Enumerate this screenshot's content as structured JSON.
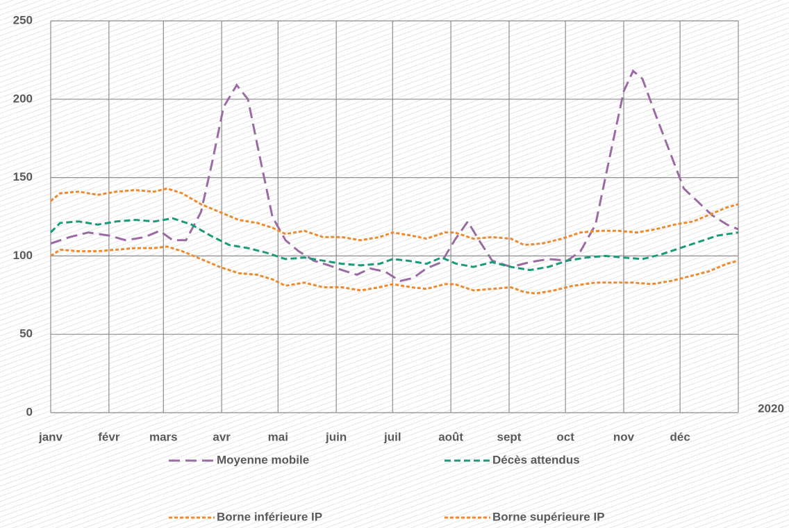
{
  "chart_data": {
    "type": "line",
    "x_label": "2020",
    "xlim": [
      0,
      366
    ],
    "xticks": [
      {
        "value": 0,
        "label": "janv"
      },
      {
        "value": 31,
        "label": "févr"
      },
      {
        "value": 60,
        "label": "mars"
      },
      {
        "value": 91,
        "label": "avr"
      },
      {
        "value": 121,
        "label": "mai"
      },
      {
        "value": 152,
        "label": "juin"
      },
      {
        "value": 182,
        "label": "juil"
      },
      {
        "value": 213,
        "label": "août"
      },
      {
        "value": 244,
        "label": "sept"
      },
      {
        "value": 274,
        "label": "oct"
      },
      {
        "value": 305,
        "label": "nov"
      },
      {
        "value": 335,
        "label": "déc"
      }
    ],
    "ylim": [
      0,
      250
    ],
    "yticks": [
      0,
      50,
      100,
      150,
      200,
      250
    ],
    "grid": true,
    "legend": "bottom",
    "series": [
      {
        "name": "Moyenne mobile",
        "color": "#9a6ba3",
        "dash": "long",
        "x": [
          0,
          10,
          20,
          31,
          40,
          50,
          58,
          65,
          72,
          80,
          86,
          92,
          99,
          105,
          111,
          118,
          125,
          132,
          140,
          148,
          155,
          163,
          170,
          178,
          186,
          193,
          200,
          208,
          215,
          222,
          228,
          235,
          245,
          255,
          265,
          275,
          282,
          290,
          297,
          305,
          310,
          315,
          322,
          330,
          337,
          345,
          352,
          360,
          366
        ],
        "values": [
          108,
          112,
          115,
          113,
          110,
          112,
          116,
          110,
          110,
          128,
          160,
          195,
          209,
          200,
          165,
          125,
          110,
          103,
          97,
          94,
          91,
          88,
          92,
          90,
          84,
          86,
          92,
          96,
          110,
          122,
          110,
          97,
          93,
          96,
          98,
          97,
          103,
          120,
          160,
          205,
          218,
          213,
          190,
          165,
          143,
          134,
          126,
          120,
          117
        ]
      },
      {
        "name": "Décès attendus",
        "color": "#1a9a78",
        "dash": "medium",
        "x": [
          0,
          5,
          15,
          25,
          35,
          45,
          55,
          65,
          75,
          85,
          95,
          105,
          115,
          125,
          135,
          145,
          155,
          165,
          175,
          182,
          190,
          200,
          208,
          216,
          225,
          235,
          245,
          255,
          265,
          275,
          285,
          295,
          305,
          315,
          325,
          335,
          345,
          355,
          366
        ],
        "values": [
          115,
          121,
          122,
          120,
          122,
          123,
          122,
          124,
          120,
          113,
          107,
          105,
          102,
          98,
          99,
          97,
          95,
          94,
          95,
          98,
          97,
          95,
          99,
          95,
          93,
          96,
          93,
          91,
          93,
          97,
          99,
          100,
          99,
          98,
          101,
          105,
          109,
          113,
          115
        ]
      },
      {
        "name": "Borne inférieure IP",
        "color": "#ee8a2c",
        "dash": "short",
        "x": [
          0,
          5,
          15,
          25,
          35,
          45,
          55,
          62,
          70,
          80,
          90,
          100,
          110,
          118,
          125,
          135,
          145,
          155,
          165,
          175,
          182,
          192,
          200,
          210,
          215,
          225,
          235,
          245,
          252,
          258,
          268,
          278,
          290,
          300,
          310,
          320,
          330,
          340,
          350,
          360,
          366
        ],
        "values": [
          100,
          104,
          103,
          103,
          104,
          105,
          105,
          106,
          103,
          98,
          93,
          89,
          88,
          85,
          81,
          83,
          80,
          80,
          78,
          80,
          82,
          80,
          79,
          82,
          82,
          78,
          79,
          80,
          77,
          76,
          78,
          81,
          83,
          83,
          83,
          82,
          84,
          87,
          90,
          95,
          97
        ]
      },
      {
        "name": "Borne supérieure IP",
        "color": "#ee8a2c",
        "dash": "short",
        "x": [
          0,
          5,
          15,
          25,
          35,
          45,
          55,
          62,
          70,
          80,
          90,
          100,
          110,
          118,
          125,
          135,
          145,
          155,
          165,
          175,
          182,
          192,
          200,
          210,
          215,
          225,
          235,
          245,
          252,
          262,
          272,
          282,
          292,
          302,
          312,
          322,
          332,
          342,
          352,
          360,
          366
        ],
        "values": [
          135,
          140,
          141,
          139,
          141,
          142,
          141,
          143,
          140,
          133,
          128,
          123,
          121,
          118,
          114,
          116,
          112,
          112,
          110,
          112,
          115,
          113,
          111,
          115,
          115,
          111,
          112,
          111,
          107,
          108,
          111,
          115,
          116,
          116,
          115,
          117,
          120,
          122,
          127,
          131,
          133
        ]
      }
    ]
  }
}
